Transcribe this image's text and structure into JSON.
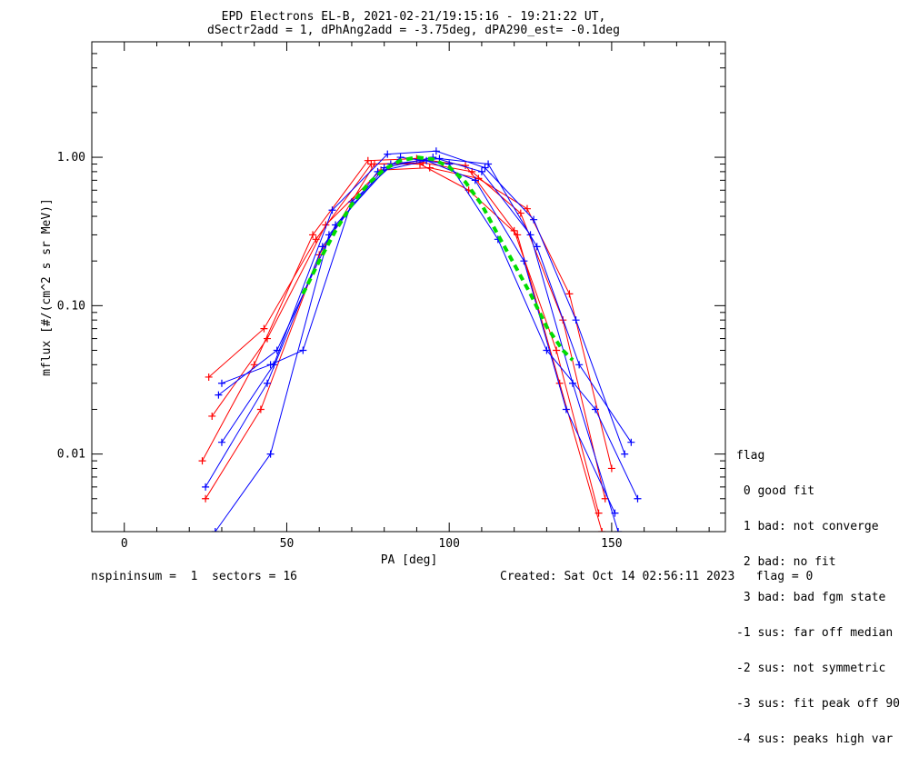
{
  "chart_data": {
    "type": "line",
    "title": "EPD Electrons EL-B, 2021-02-21/19:15:16 - 19:21:22 UT,",
    "subtitle": "dSectr2add = 1, dPhAng2add = -3.75deg, dPA290_est=  -0.1deg",
    "xlabel": "PA [deg]",
    "ylabel": "mflux [#/(cm^2 s sr MeV)]",
    "xlim": [
      -10,
      185
    ],
    "ylim": [
      0.003,
      6.0
    ],
    "yscale": "log",
    "x_ticks": [
      0,
      50,
      100,
      150
    ],
    "x_tick_labels": [
      "0",
      "50",
      "100",
      "150"
    ],
    "y_ticks": [
      0.01,
      0.1,
      1.0
    ],
    "y_tick_labels": [
      "0.01",
      "0.10",
      "1.00"
    ],
    "grid": false,
    "colors": {
      "series_a": "#ff0000",
      "series_b": "#0000ff",
      "fit": "#00dd00",
      "axes": "#000000"
    },
    "series": [
      {
        "color": "red",
        "x": [
          25,
          42,
          60,
          77,
          92,
          107,
          122,
          135,
          148
        ],
        "y": [
          0.005,
          0.02,
          0.22,
          0.9,
          0.92,
          0.8,
          0.42,
          0.08,
          0.005
        ]
      },
      {
        "color": "red",
        "x": [
          24,
          40,
          58,
          75,
          90,
          105,
          120,
          133,
          146
        ],
        "y": [
          0.009,
          0.04,
          0.3,
          0.95,
          0.98,
          0.88,
          0.32,
          0.05,
          0.004
        ]
      },
      {
        "color": "red",
        "x": [
          27,
          44,
          62,
          79,
          94,
          109,
          124,
          137,
          150
        ],
        "y": [
          0.018,
          0.06,
          0.35,
          0.82,
          0.85,
          0.72,
          0.45,
          0.12,
          0.008
        ]
      },
      {
        "color": "red",
        "x": [
          26,
          43,
          59,
          76,
          91,
          106,
          121,
          134,
          147
        ],
        "y": [
          0.033,
          0.07,
          0.28,
          0.9,
          0.9,
          0.6,
          0.3,
          0.03,
          0.003
        ]
      },
      {
        "color": "blue",
        "x": [
          28,
          45,
          63,
          80,
          95,
          110,
          125,
          138,
          152
        ],
        "y": [
          0.003,
          0.01,
          0.3,
          0.85,
          1.0,
          0.8,
          0.3,
          0.03,
          0.003
        ]
      },
      {
        "color": "blue",
        "x": [
          30,
          46,
          64,
          81,
          96,
          111,
          126,
          139,
          154
        ],
        "y": [
          0.012,
          0.04,
          0.44,
          1.05,
          1.1,
          0.85,
          0.38,
          0.08,
          0.01
        ]
      },
      {
        "color": "blue",
        "x": [
          25,
          44,
          61,
          78,
          93,
          108,
          123,
          136,
          151
        ],
        "y": [
          0.006,
          0.03,
          0.25,
          0.8,
          0.95,
          0.7,
          0.2,
          0.02,
          0.004
        ]
      },
      {
        "color": "blue",
        "x": [
          29,
          47,
          65,
          82,
          97,
          112,
          127,
          140,
          156
        ],
        "y": [
          0.025,
          0.05,
          0.35,
          0.9,
          0.98,
          0.9,
          0.25,
          0.04,
          0.012
        ]
      },
      {
        "color": "blue",
        "x": [
          30,
          45,
          55,
          70,
          85,
          100,
          115,
          130,
          145,
          158
        ],
        "y": [
          0.03,
          0.04,
          0.05,
          0.5,
          1.0,
          0.9,
          0.28,
          0.05,
          0.02,
          0.005
        ]
      }
    ],
    "fit": {
      "color": "green",
      "x": [
        55,
        60,
        65,
        70,
        75,
        80,
        85,
        90,
        95,
        100,
        105,
        110,
        115,
        120,
        125,
        130,
        135,
        138
      ],
      "y": [
        0.12,
        0.2,
        0.32,
        0.48,
        0.66,
        0.83,
        0.95,
        1.0,
        0.97,
        0.86,
        0.68,
        0.48,
        0.3,
        0.19,
        0.12,
        0.072,
        0.05,
        0.043
      ]
    }
  },
  "legend": {
    "title": "flag",
    "items": [
      " 0 good fit",
      " 1 bad: not converge",
      " 2 bad: no fit",
      " 3 bad: bad fgm state",
      "-1 sus: far off median",
      "-2 sus: not symmetric",
      "-3 sus: fit peak off 90",
      "-4 sus: peaks high var"
    ]
  },
  "footer": {
    "left": "nspininsum =  1  sectors = 16",
    "right": "Created: Sat Oct 14 02:56:11 2023   flag = 0"
  }
}
